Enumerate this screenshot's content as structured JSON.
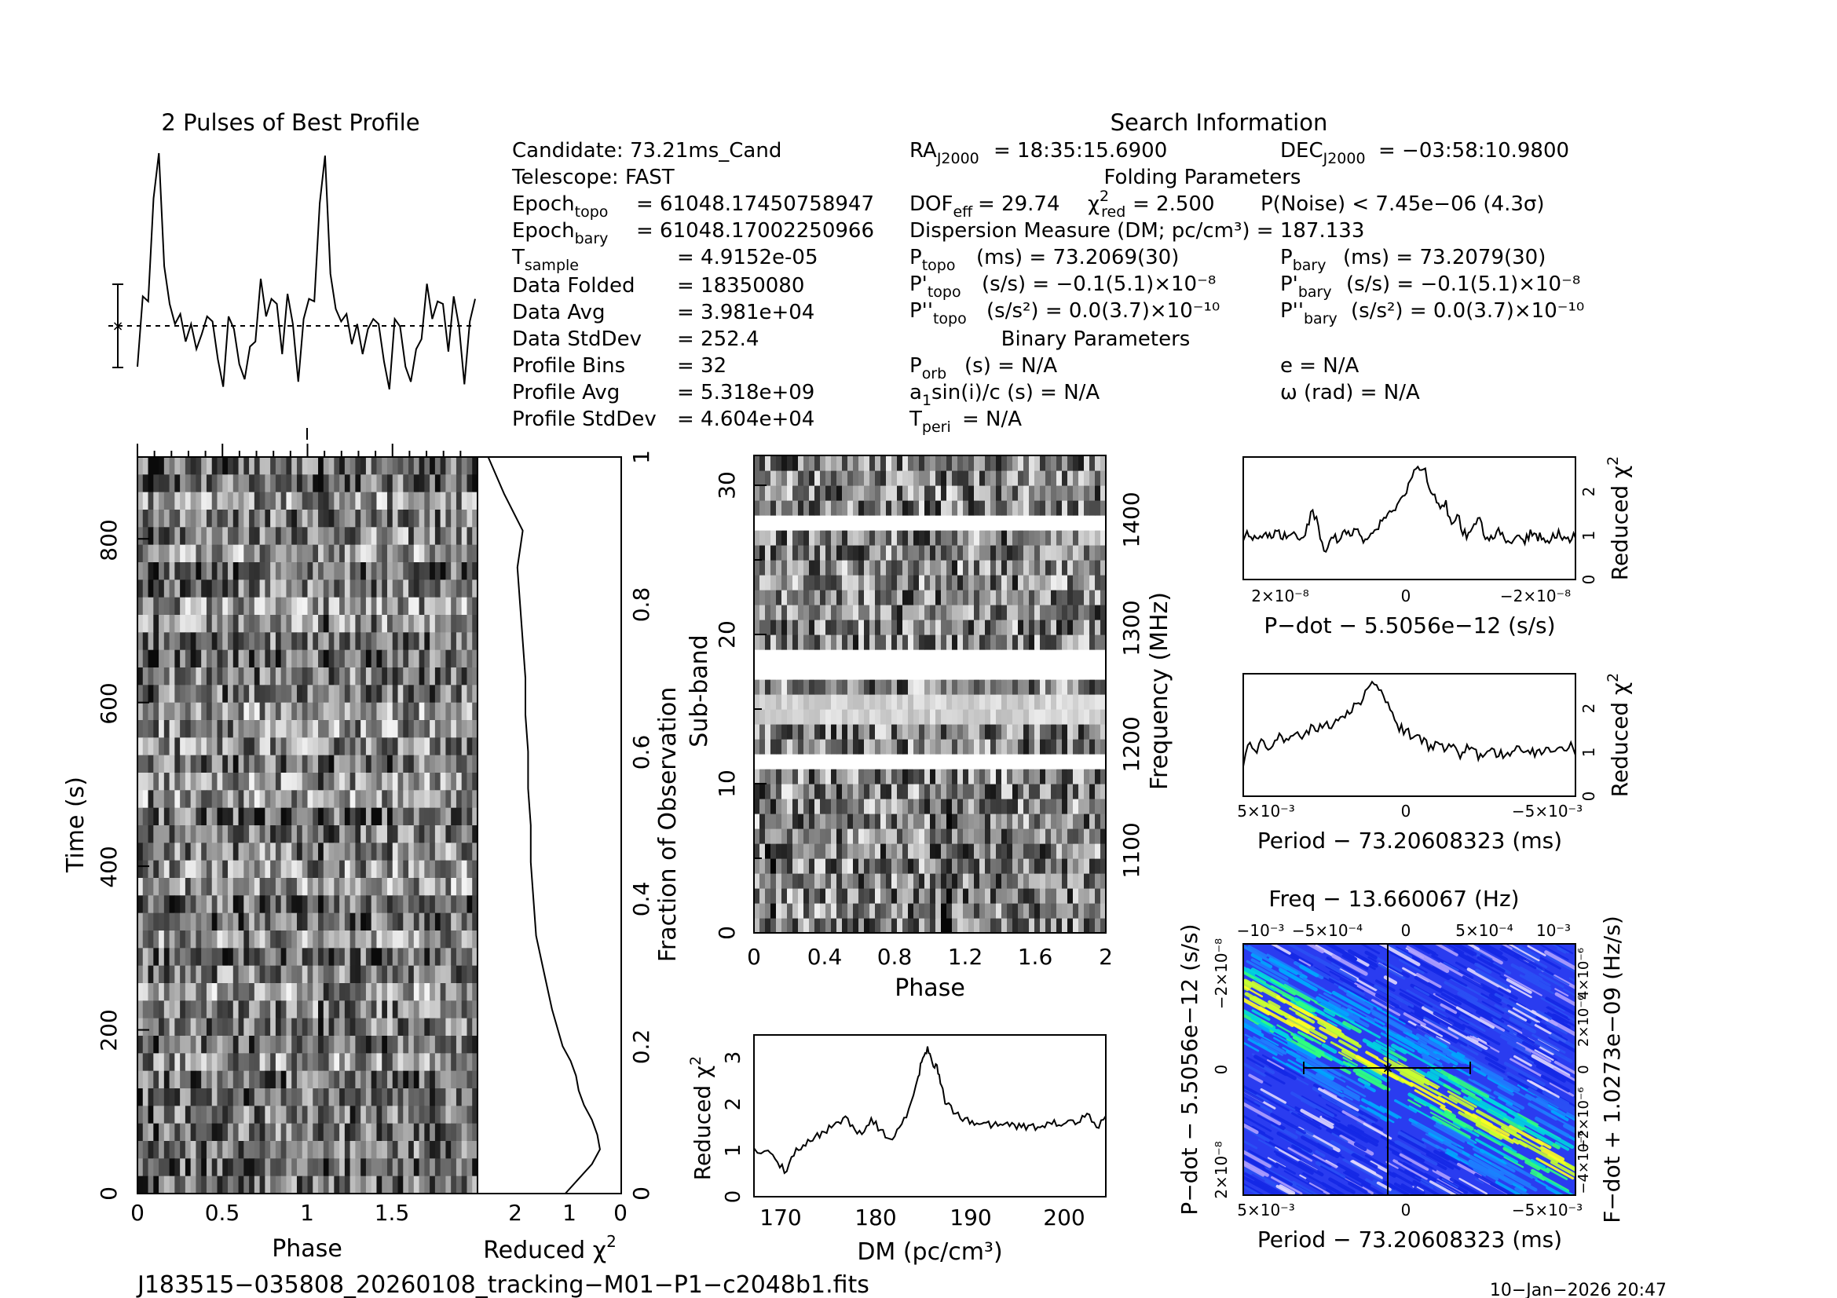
{
  "header": {
    "profile_title": "2 Pulses of Best Profile",
    "search_title": "Search Information",
    "folding_title": "Folding Parameters",
    "binary_title": "Binary Parameters"
  },
  "candidate_info": {
    "candidate": "Candidate:  73.21ms_Cand",
    "telescope": "Telescope:  FAST",
    "epoch_topo_value": "= 61048.17450758947",
    "epoch_bary_value": "= 61048.17002250966",
    "t_sample": "=   4.9152e-05",
    "data_folded_label": "Data Folded",
    "data_folded": "=   18350080",
    "data_avg_label": "Data Avg",
    "data_avg": "=   3.981e+04",
    "data_stddev_label": "Data StdDev",
    "data_stddev": "=   252.4",
    "profile_bins_label": "Profile Bins",
    "profile_bins": "=   32",
    "profile_avg_label": "Profile Avg",
    "profile_avg": "=   5.318e+09",
    "profile_stddev_label": "Profile StdDev",
    "profile_stddev": "=   4.604e+04"
  },
  "search_info": {
    "ra": "= 18:35:15.6900",
    "dec": "= −03:58:10.9800",
    "dof": "= 29.74",
    "chi2red": "= 2.500",
    "pnoise": "P(Noise) < 7.45e−06   (4.3σ)",
    "dm": "Dispersion Measure (DM; pc/cm³) = 187.133",
    "ptopo": "(ms) =   73.2069(30)",
    "pbary": "(ms) =   73.2079(30)",
    "pdot_topo": "(s/s) = −0.1(5.1)×10⁻⁸",
    "pdot_bary": "(s/s) = −0.1(5.1)×10⁻⁸",
    "pddot_topo": "(s/s²) = 0.0(3.7)×10⁻¹⁰",
    "pddot_bary": "(s/s²) = 0.0(3.7)×10⁻¹⁰",
    "porb": "(s) = N/A",
    "a1sini": "sin(i)/c (s) = N/A",
    "tperi": "= N/A",
    "ecc": "e = N/A",
    "omega": "ω (rad) = N/A"
  },
  "footer": {
    "filename": "J183515−035808_20260108_tracking−M01−P1−c2048b1.fits",
    "timestamp": "10−Jan−2026 20:47"
  },
  "chart_data": [
    {
      "type": "line",
      "name": "profile",
      "title": "2 Pulses of Best Profile",
      "x": "phase bins 0..63 (2 pulses of 32 bins)",
      "values": [
        0.15,
        0.43,
        0.41,
        0.82,
        1.0,
        0.55,
        0.4,
        0.32,
        0.36,
        0.25,
        0.32,
        0.22,
        0.28,
        0.35,
        0.33,
        0.18,
        0.07,
        0.35,
        0.3,
        0.16,
        0.1,
        0.23,
        0.25,
        0.5,
        0.35,
        0.42,
        0.4,
        0.2,
        0.44,
        0.32,
        0.09,
        0.34,
        0.42,
        0.41,
        0.8,
        0.99,
        0.52,
        0.38,
        0.33,
        0.36,
        0.24,
        0.32,
        0.2,
        0.3,
        0.34,
        0.32,
        0.17,
        0.06,
        0.34,
        0.31,
        0.15,
        0.09,
        0.22,
        0.26,
        0.48,
        0.34,
        0.41,
        0.4,
        0.21,
        0.43,
        0.31,
        0.08,
        0.33,
        0.42
      ],
      "mean": 0.38,
      "err": 0.18
    },
    {
      "type": "heatmap",
      "name": "time-phase",
      "xlabel": "Phase",
      "ylabel": "Time (s)",
      "xticks": [
        "0",
        "0.5",
        "1",
        "1.5"
      ],
      "yticks": [
        "0",
        "200",
        "400",
        "600",
        "800"
      ],
      "xlim": [
        0,
        2
      ],
      "ylim": [
        0,
        880
      ]
    },
    {
      "type": "line",
      "name": "chi2-vs-time",
      "xlabel": "Reduced χ²",
      "ylabel": "Fraction of Observation",
      "xticks": [
        "2",
        "1",
        "0"
      ],
      "yticks": [
        "0",
        "0.2",
        "0.4",
        "0.6",
        "0.8",
        "1"
      ],
      "fraction": [
        0.0,
        0.02,
        0.04,
        0.06,
        0.08,
        0.1,
        0.12,
        0.14,
        0.16,
        0.18,
        0.2,
        0.25,
        0.3,
        0.35,
        0.4,
        0.45,
        0.5,
        0.55,
        0.6,
        0.65,
        0.7,
        0.75,
        0.8,
        0.85,
        0.9,
        0.95,
        1.0
      ],
      "chi2": [
        1.05,
        0.8,
        0.55,
        0.4,
        0.45,
        0.55,
        0.7,
        0.8,
        0.85,
        0.95,
        1.1,
        1.3,
        1.45,
        1.6,
        1.65,
        1.7,
        1.7,
        1.75,
        1.75,
        1.8,
        1.8,
        1.85,
        1.9,
        1.95,
        1.85,
        2.2,
        2.5
      ]
    },
    {
      "type": "heatmap",
      "name": "subband-phase",
      "xlabel": "Phase",
      "ylabel": "Sub-band",
      "y2label": "Frequency (MHz)",
      "xticks": [
        "0",
        "0.4",
        "0.8",
        "1.2",
        "1.6",
        "2"
      ],
      "yticks": [
        "0",
        "10",
        "20",
        "30"
      ],
      "y2ticks": [
        "1100",
        "1200",
        "1300",
        "1400"
      ],
      "blanked_subbands": [
        11,
        17,
        18,
        27
      ],
      "light_subbands": [
        14,
        15
      ]
    },
    {
      "type": "line",
      "name": "dm-chi2",
      "xlabel": "DM (pc/cm³)",
      "ylabel": "Reduced χ²",
      "xticks": [
        "170",
        "180",
        "190",
        "200"
      ],
      "yticks": [
        "0",
        "1",
        "2",
        "3"
      ],
      "xlim": [
        167.5,
        205
      ],
      "ylim": [
        0,
        3.5
      ],
      "x": [
        167.5,
        169,
        170,
        171,
        172,
        173,
        174,
        175,
        176,
        177,
        178,
        179,
        180,
        181,
        182,
        183,
        184,
        185,
        185.5,
        186,
        186.5,
        187,
        187.5,
        188,
        189,
        190,
        191,
        192,
        193,
        194,
        195,
        196,
        197,
        198,
        199,
        200,
        201,
        202,
        203,
        204,
        205
      ],
      "y": [
        1.05,
        1.0,
        0.75,
        0.55,
        1.05,
        1.1,
        1.3,
        1.4,
        1.55,
        1.7,
        1.55,
        1.35,
        1.7,
        1.45,
        1.25,
        1.5,
        1.9,
        2.6,
        3.0,
        3.25,
        2.9,
        2.85,
        2.4,
        2.0,
        1.8,
        1.7,
        1.55,
        1.6,
        1.55,
        1.55,
        1.6,
        1.5,
        1.55,
        1.5,
        1.6,
        1.55,
        1.65,
        1.6,
        1.8,
        1.5,
        1.75
      ]
    },
    {
      "type": "line",
      "name": "pdot-chi2",
      "xlabel": "P−dot − 5.5056e−12 (s/s)",
      "ylabel": "Reduced χ²",
      "xticks": [
        "2×10⁻⁸",
        "0",
        "−2×10⁻⁸"
      ],
      "yticks": [
        "0",
        "1",
        "2"
      ],
      "ylim": [
        0,
        2.8
      ],
      "y": [
        1.0,
        1.05,
        0.9,
        1.1,
        1.0,
        0.95,
        1.05,
        1.0,
        0.9,
        1.1,
        0.95,
        1.0,
        1.5,
        1.45,
        0.8,
        0.7,
        1.0,
        0.9,
        1.05,
        1.1,
        1.2,
        1.0,
        0.85,
        1.0,
        1.2,
        1.35,
        1.5,
        1.6,
        1.8,
        2.0,
        2.3,
        2.55,
        2.6,
        2.2,
        1.9,
        1.6,
        1.7,
        1.3,
        1.5,
        1.1,
        1.0,
        1.2,
        1.4,
        0.9,
        1.0,
        1.1,
        0.95,
        0.85,
        1.0,
        1.05,
        0.9,
        1.1,
        1.0,
        0.95,
        0.85,
        1.0,
        1.05,
        1.0,
        0.9,
        1.0
      ]
    },
    {
      "type": "line",
      "name": "period-chi2",
      "xlabel": "Period − 73.20608323 (ms)",
      "ylabel": "Reduced χ²",
      "xticks": [
        "5×10⁻³",
        "0",
        "−5×10⁻³"
      ],
      "yticks": [
        "0",
        "1",
        "2"
      ],
      "ylim": [
        0,
        2.8
      ],
      "y": [
        0.8,
        1.2,
        1.0,
        1.3,
        1.1,
        1.4,
        1.2,
        1.3,
        1.5,
        1.4,
        1.6,
        1.5,
        1.7,
        1.6,
        1.8,
        1.9,
        2.0,
        2.1,
        2.3,
        2.6,
        2.5,
        2.2,
        1.9,
        1.6,
        1.5,
        1.3,
        1.4,
        1.2,
        1.1,
        1.3,
        1.0,
        1.2,
        0.9,
        1.1,
        1.0,
        0.9,
        1.1,
        1.0,
        0.95,
        1.0,
        1.05,
        1.0,
        1.1,
        0.95,
        1.0,
        1.05,
        1.1,
        1.0,
        1.2,
        1.0
      ]
    },
    {
      "type": "heatmap",
      "name": "period-pdot",
      "title": "Freq − 13.660067 (Hz)",
      "xlabel": "Period − 73.20608323 (ms)",
      "ylabel": "P−dot − 5.5056e−12 (s/s)",
      "y2label": "F−dot + 1.0273e−09 (Hz/s)",
      "xticks": [
        "5×10⁻³",
        "0",
        "−5×10⁻³"
      ],
      "x2ticks": [
        "−10⁻³",
        "−5×10⁻⁴",
        "0",
        "5×10⁻⁴",
        "10⁻³"
      ],
      "yticks": [
        "2×10⁻⁸",
        "0",
        "−2×10⁻⁸"
      ],
      "y2ticks": [
        "−4×10⁻⁶",
        "−2×10⁻⁶",
        "0",
        "2×10⁻⁶",
        "4×10⁻⁶"
      ],
      "colors": [
        "#1a1aff",
        "#00aaff",
        "#00e0c0",
        "#30ff60",
        "#ffff00",
        "#ffffff"
      ]
    }
  ]
}
